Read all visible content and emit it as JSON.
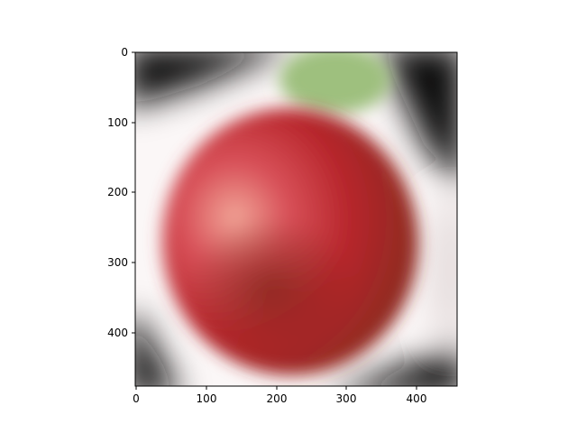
{
  "image_axes": {
    "x_ticks": [
      "0",
      "100",
      "200",
      "300",
      "400"
    ],
    "y_ticks": [
      "0",
      "100",
      "200",
      "300",
      "400"
    ],
    "x_range": [
      0,
      457
    ],
    "y_range": [
      0,
      475
    ]
  }
}
